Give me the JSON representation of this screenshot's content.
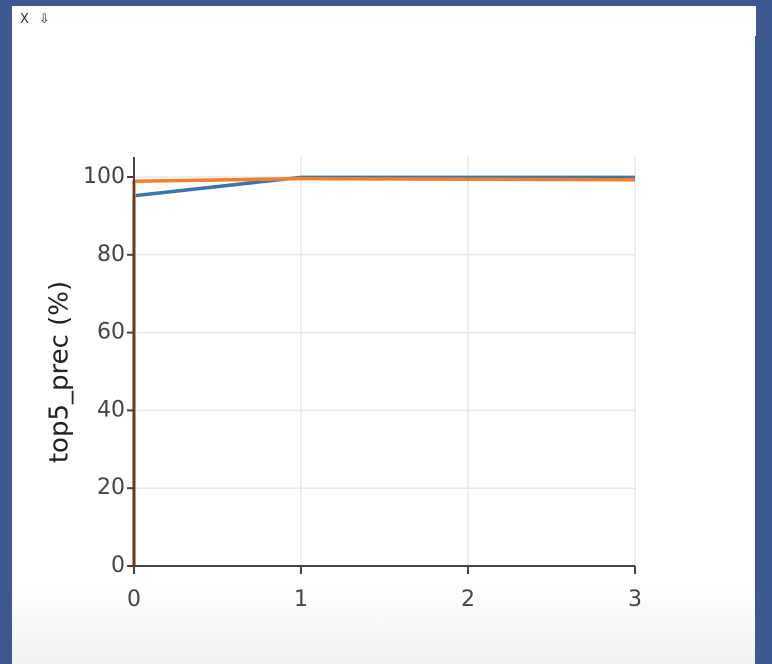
{
  "toolbar": {
    "close_label": "X",
    "download_label": "⇩"
  },
  "chart_data": {
    "type": "line",
    "title": "",
    "xlabel": "",
    "ylabel": "top5_prec (%)",
    "xlim": [
      0,
      3
    ],
    "ylim": [
      0,
      105
    ],
    "x_ticks": [
      0,
      1,
      2,
      3
    ],
    "y_ticks": [
      0,
      20,
      40,
      60,
      80,
      100
    ],
    "grid": true,
    "legend": "none",
    "series": [
      {
        "color": "#3a76aa",
        "x": [
          0,
          0,
          1,
          2,
          3
        ],
        "y": [
          0,
          95.2,
          99.9,
          99.9,
          99.9
        ]
      },
      {
        "color": "#f07f2e",
        "x": [
          0,
          0,
          1,
          2,
          3
        ],
        "y": [
          0,
          98.9,
          99.6,
          99.4,
          99.3
        ]
      }
    ]
  }
}
